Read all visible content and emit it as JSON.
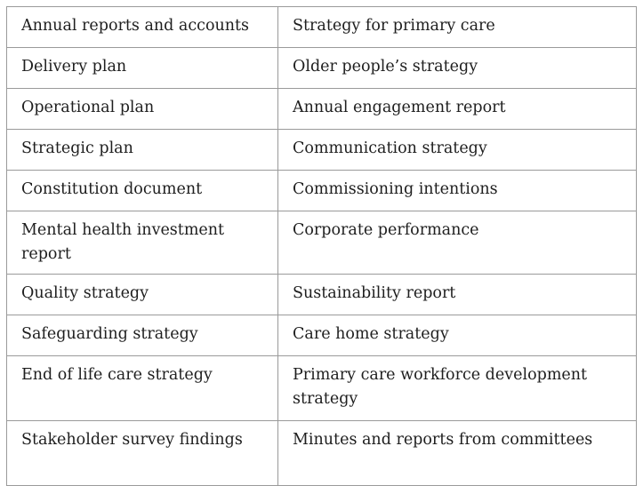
{
  "table": {
    "rows": [
      {
        "left": "Annual reports and accounts",
        "right": "Strategy for primary care"
      },
      {
        "left": "Delivery plan",
        "right": "Older people’s strategy"
      },
      {
        "left": "Operational plan",
        "right": "Annual engagement report"
      },
      {
        "left": "Strategic plan",
        "right": "Communication strategy"
      },
      {
        "left": "Constitution document",
        "right": "Commissioning intentions"
      },
      {
        "left": "Mental health investment report",
        "right": "Corporate performance"
      },
      {
        "left": "Quality strategy",
        "right": "Sustainability report"
      },
      {
        "left": "Safeguarding strategy",
        "right": "Care home strategy"
      },
      {
        "left": "End of life care strategy",
        "right": "Primary care workforce development strategy"
      },
      {
        "left": "Stakeholder survey findings",
        "right": "Minutes and reports from committees"
      }
    ]
  }
}
